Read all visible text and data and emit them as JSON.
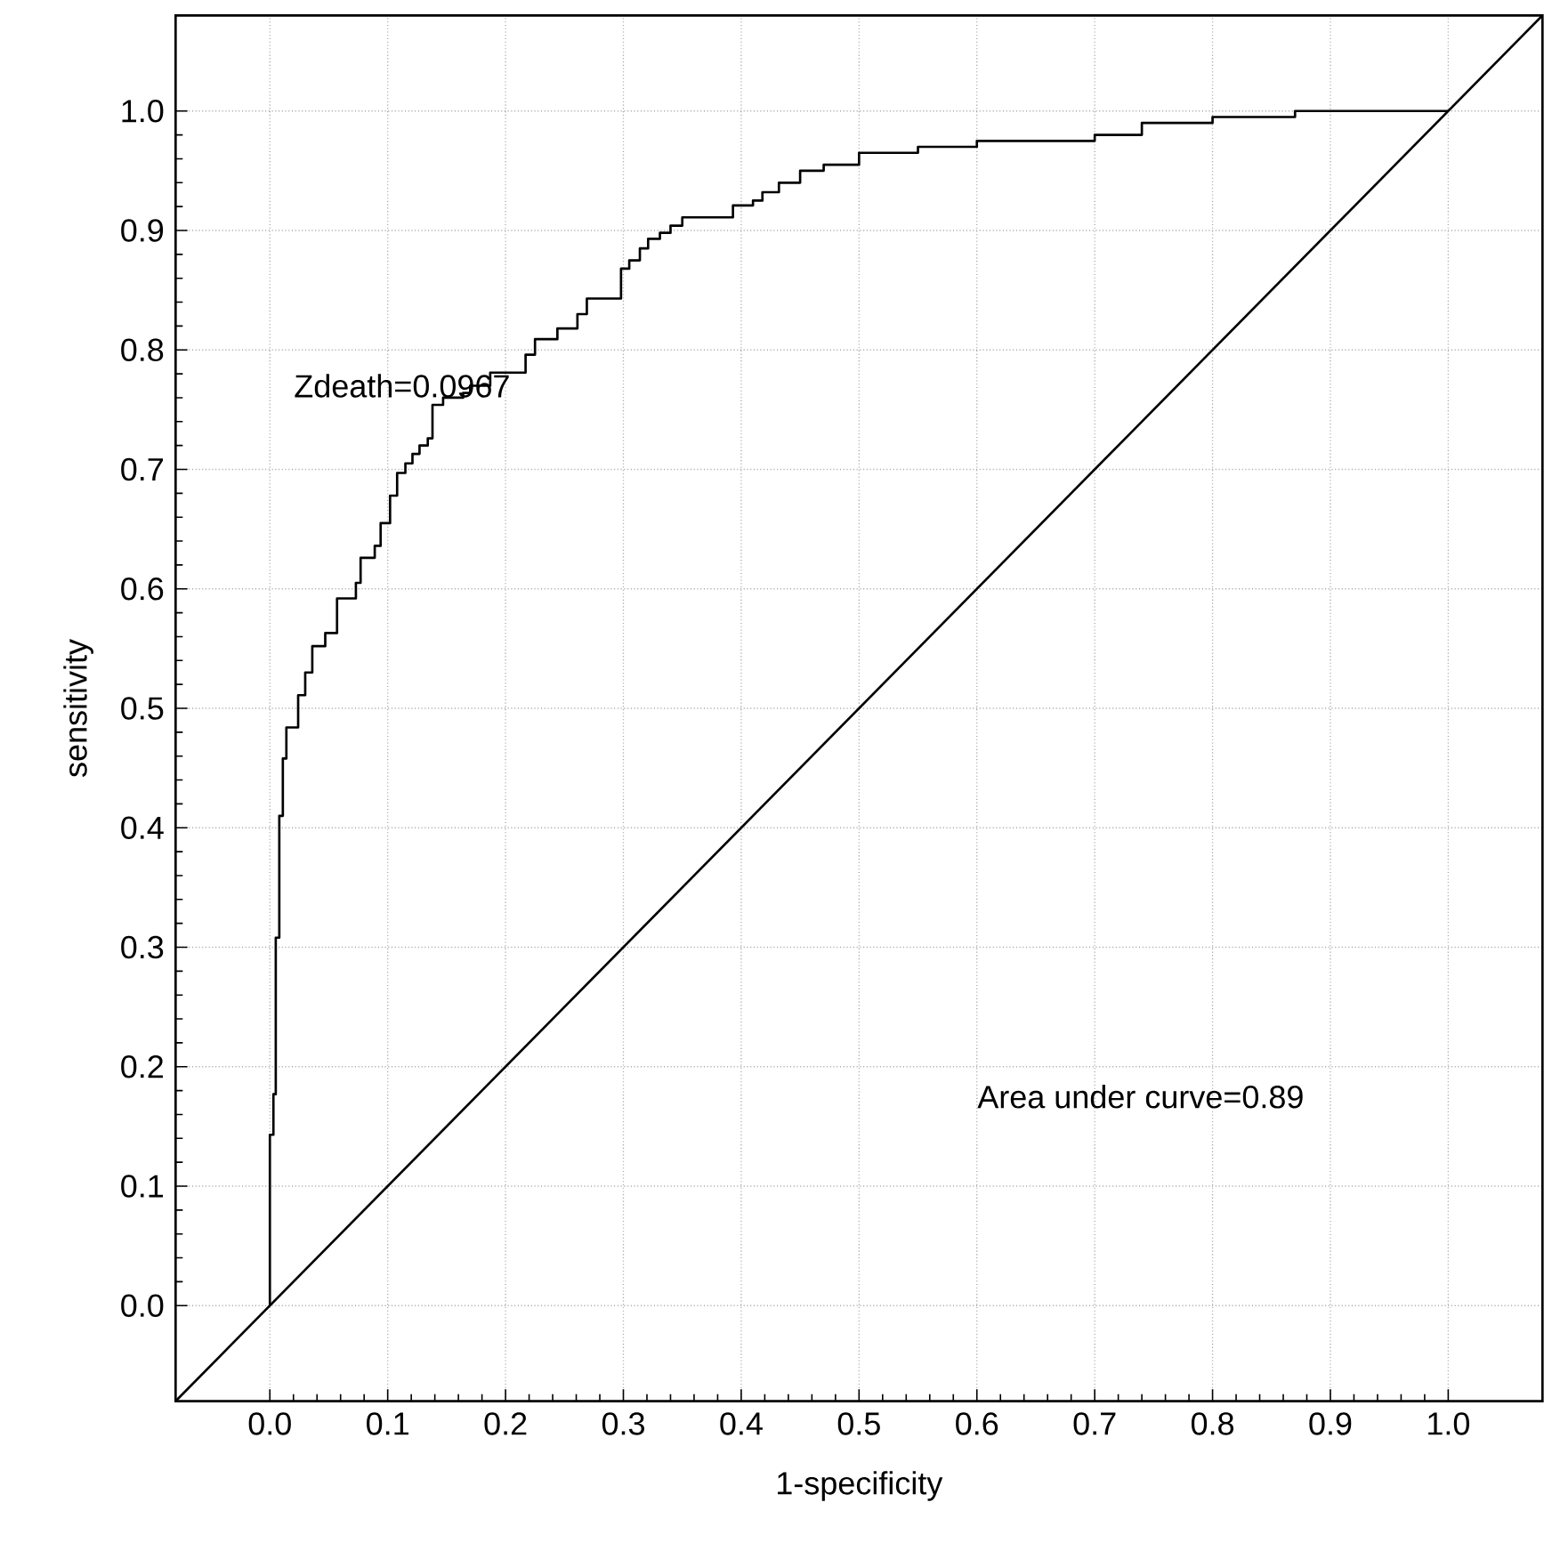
{
  "chart_data": {
    "type": "step",
    "xlabel": "1-specificity",
    "ylabel": "sensitivity",
    "xlim": [
      -0.08,
      1.08
    ],
    "ylim": [
      -0.08,
      1.08
    ],
    "xticks": [
      {
        "value": 0,
        "label": "0.0"
      },
      {
        "value": 0.1,
        "label": "0.1"
      },
      {
        "value": 0.2,
        "label": "0.2"
      },
      {
        "value": 0.3,
        "label": "0.3"
      },
      {
        "value": 0.4,
        "label": "0.4"
      },
      {
        "value": 0.5,
        "label": "0.5"
      },
      {
        "value": 0.6,
        "label": "0.6"
      },
      {
        "value": 0.7,
        "label": "0.7"
      },
      {
        "value": 0.8,
        "label": "0.8"
      },
      {
        "value": 0.9,
        "label": "0.9"
      },
      {
        "value": 1,
        "label": "1.0"
      }
    ],
    "yticks": [
      {
        "value": 0,
        "label": "0.0"
      },
      {
        "value": 0.1,
        "label": "0.1"
      },
      {
        "value": 0.2,
        "label": "0.2"
      },
      {
        "value": 0.3,
        "label": "0.3"
      },
      {
        "value": 0.4,
        "label": "0.4"
      },
      {
        "value": 0.5,
        "label": "0.5"
      },
      {
        "value": 0.6,
        "label": "0.6"
      },
      {
        "value": 0.7,
        "label": "0.7"
      },
      {
        "value": 0.8,
        "label": "0.8"
      },
      {
        "value": 0.9,
        "label": "0.9"
      },
      {
        "value": 1,
        "label": "1.0"
      }
    ],
    "grid": true,
    "marker": "none",
    "line_style": "solid",
    "series": [
      {
        "color": "#000000",
        "x": [
          0,
          0,
          0.003,
          0.005,
          0.008,
          0.011,
          0.014,
          0.024,
          0.03,
          0.036,
          0.047,
          0.057,
          0.073,
          0.077,
          0.089,
          0.094,
          0.102,
          0.108,
          0.115,
          0.121,
          0.127,
          0.134,
          0.138,
          0.147,
          0.164,
          0.17,
          0.187,
          0.217,
          0.225,
          0.244,
          0.261,
          0.269,
          0.298,
          0.305,
          0.314,
          0.321,
          0.331,
          0.34,
          0.35,
          0.393,
          0.41,
          0.418,
          0.432,
          0.45,
          0.47,
          0.5,
          0.55,
          0.6,
          0.7,
          0.74,
          0.8,
          0.87,
          1.0
        ],
        "values": [
          0,
          0.143,
          0.177,
          0.308,
          0.41,
          0.458,
          0.484,
          0.511,
          0.53,
          0.552,
          0.563,
          0.592,
          0.605,
          0.626,
          0.636,
          0.655,
          0.678,
          0.697,
          0.705,
          0.713,
          0.72,
          0.726,
          0.754,
          0.76,
          0.764,
          0.77,
          0.781,
          0.796,
          0.809,
          0.818,
          0.83,
          0.843,
          0.868,
          0.875,
          0.885,
          0.893,
          0.898,
          0.904,
          0.911,
          0.921,
          0.925,
          0.932,
          0.94,
          0.95,
          0.955,
          0.965,
          0.97,
          0.975,
          0.98,
          0.99,
          0.995,
          1.0,
          1.0
        ]
      },
      {
        "type": "line",
        "color": "#000000",
        "x": [
          -0.08,
          1.08
        ],
        "values": [
          -0.08,
          1.08
        ]
      }
    ],
    "annotations": [
      "Zdeath=0.0967",
      "Area under curve=0.89"
    ]
  }
}
